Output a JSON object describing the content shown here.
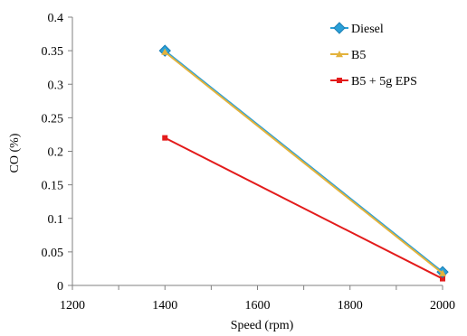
{
  "chart_data": {
    "type": "line",
    "xlabel": "Speed (rpm)",
    "ylabel": "CO (%)",
    "xlim": [
      1200,
      2000
    ],
    "ylim": [
      0,
      0.4
    ],
    "x_ticks": [
      "1200",
      "1400",
      "1600",
      "1800",
      "2000"
    ],
    "y_ticks": [
      "0",
      "0.05",
      "0.1",
      "0.15",
      "0.2",
      "0.25",
      "0.3",
      "0.35",
      "0.4"
    ],
    "grid": false,
    "legend_position": "top-right",
    "series": [
      {
        "name": "Diesel",
        "x": [
          1400,
          2000
        ],
        "values": [
          0.35,
          0.02
        ],
        "color": "#2aa0d8",
        "marker": "diamond"
      },
      {
        "name": "B5",
        "x": [
          1400,
          2000
        ],
        "values": [
          0.348,
          0.018
        ],
        "color": "#e3b23c",
        "marker": "triangle"
      },
      {
        "name": "B5 + 5g EPS",
        "x": [
          1400,
          2000
        ],
        "values": [
          0.22,
          0.01
        ],
        "color": "#e31b1b",
        "marker": "square"
      }
    ]
  }
}
